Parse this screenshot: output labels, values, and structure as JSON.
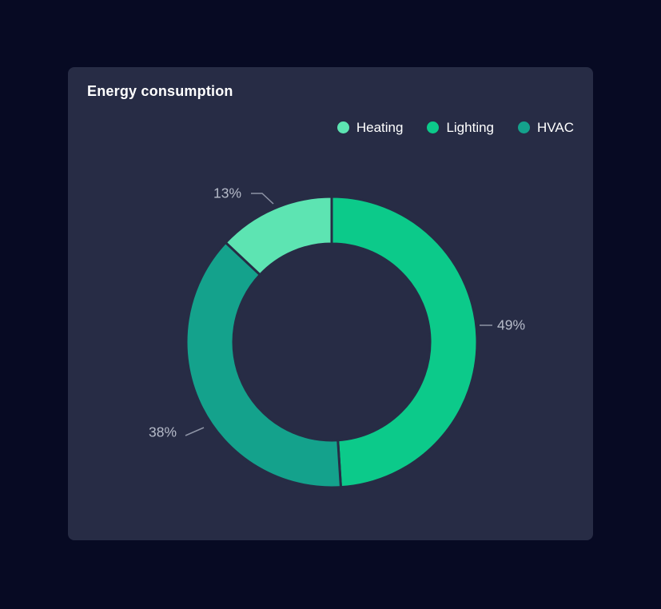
{
  "card": {
    "title": "Energy consumption"
  },
  "colors": {
    "page_bg": "#070a23",
    "card_bg": "#272c45",
    "title_text": "#ffffff",
    "legend_text": "#ffffff",
    "label_text": "#b6bbc9",
    "connector_line": "#8d93a5"
  },
  "chart_data": {
    "type": "pie",
    "subtype": "donut",
    "title": "Energy consumption",
    "unit": "%",
    "start_angle": "top",
    "direction": "clockwise",
    "legend_position": "top-right",
    "legend": [
      {
        "label": "Heating",
        "color": "#5de4b2"
      },
      {
        "label": "Lighting",
        "color": "#0cca8a"
      },
      {
        "label": "HVAC",
        "color": "#14a28c"
      }
    ],
    "series": [
      {
        "name": "Lighting",
        "value": 49,
        "label": "49%",
        "color": "#0cca8a"
      },
      {
        "name": "HVAC",
        "value": 38,
        "label": "38%",
        "color": "#14a28c"
      },
      {
        "name": "Heating",
        "value": 13,
        "label": "13%",
        "color": "#5de4b2"
      }
    ]
  }
}
